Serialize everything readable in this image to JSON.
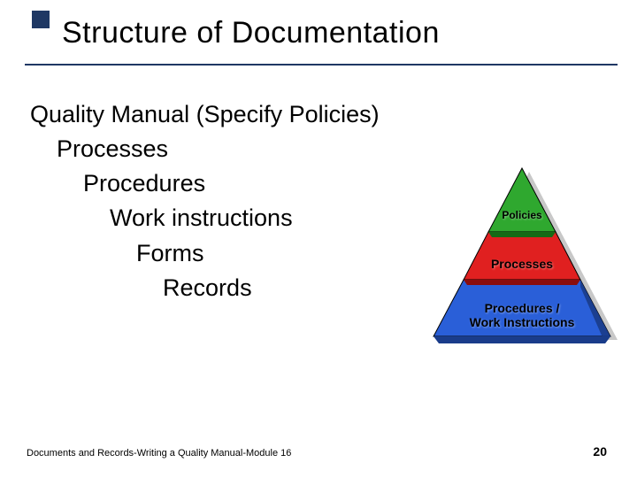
{
  "title": "Structure of Documentation",
  "list": {
    "item0": "Quality Manual (Specify Policies)",
    "item1": "    Processes",
    "item2": "        Procedures",
    "item3": "            Work instructions",
    "item4": "                Forms",
    "item5": "                    Records"
  },
  "pyramid": {
    "type": "pyramid-3-tier",
    "labels": {
      "top": "Policies",
      "mid": "Processes",
      "bot": "Procedures /\nWork Instructions"
    },
    "colors": {
      "top_face": "#2fa82f",
      "top_edge": "#166a16",
      "mid_face": "#e02020",
      "mid_edge": "#8a0d0d",
      "bot_face": "#2a5fd8",
      "bot_edge": "#1a3c8a",
      "outline": "#000000",
      "shadow": "#c8c8c8"
    },
    "label_fontsize_top": 12,
    "label_fontsize_mid": 14,
    "label_fontsize_bot": 14
  },
  "footer": {
    "left": "Documents and Records-Writing a Quality Manual-Module 16",
    "page": "20"
  },
  "theme": {
    "accent": "#1f3864",
    "title_fontsize": 34,
    "list_fontsize": 27,
    "background": "#ffffff"
  }
}
